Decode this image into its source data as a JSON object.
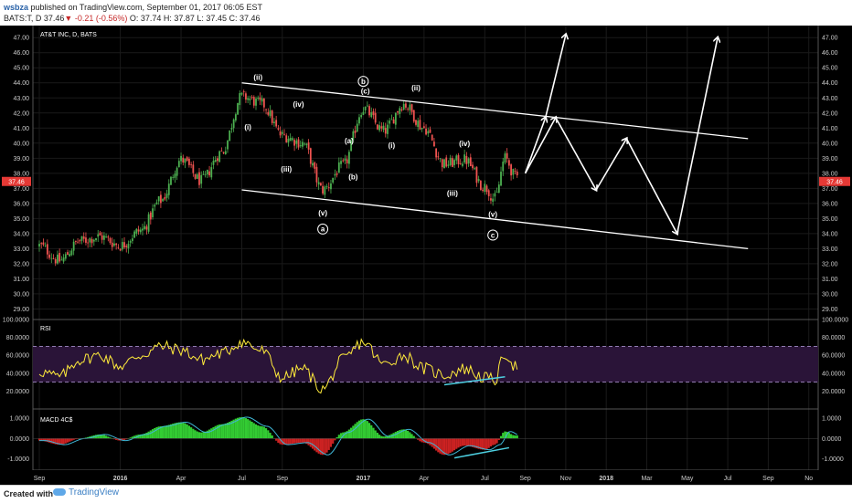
{
  "header": {
    "author": "wsbza",
    "published_text": "published on TradingView.com, September 01, 2017 06:05 EST",
    "symbol_text": "BATS:T, D",
    "last_text": "37.46",
    "change_text": "-0.21 (-0.56%)",
    "ohlc_text": "O: 37.74 H: 37.87 L: 37.45 C: 37.46"
  },
  "footer": {
    "created_with": "Created with",
    "brand": "TradingView"
  },
  "colors": {
    "background": "#000000",
    "up": "#4caf50",
    "down": "#ef5350",
    "rsi": "#ffeb3b",
    "rsi_band": "#b39ddb",
    "trendline": "#ffffff",
    "divergence": "#4dd0e1",
    "macd_pos": "#33cc33",
    "macd_neg": "#cc2222",
    "macd_line": "#3fb6d6"
  },
  "chart_data": [
    {
      "type": "candlestick",
      "title": "AT&T INC, D, BATS",
      "ylim": [
        28.3,
        47.8
      ],
      "y_ticks": [
        "29.00",
        "30.00",
        "31.00",
        "32.00",
        "33.00",
        "34.00",
        "35.00",
        "36.00",
        "37.00",
        "38.00",
        "39.00",
        "40.00",
        "41.00",
        "42.00",
        "43.00",
        "44.00",
        "45.00",
        "46.00",
        "47.00"
      ],
      "last_price": "37.46",
      "x_labels": [
        "Sep",
        "2016",
        "Apr",
        "Jul",
        "Sep",
        "2017",
        "Apr",
        "Jul",
        "Sep",
        "Nov",
        "2018",
        "Mar",
        "May",
        "Jul",
        "Sep",
        "No"
      ],
      "x_label_months": [
        0,
        4,
        7,
        10,
        12,
        16,
        19,
        22,
        24,
        26,
        28,
        30,
        32,
        34,
        36,
        38
      ],
      "price_anchors": [
        [
          0,
          33.2
        ],
        [
          1,
          32.2
        ],
        [
          2,
          33.5
        ],
        [
          3,
          33.8
        ],
        [
          4,
          33.2
        ],
        [
          5,
          34.2
        ],
        [
          6,
          36.2
        ],
        [
          7,
          38.9
        ],
        [
          8,
          37.5
        ],
        [
          9,
          39.4
        ],
        [
          10,
          43.1
        ],
        [
          11,
          42.6
        ],
        [
          12,
          40.5
        ],
        [
          13,
          40.0
        ],
        [
          14,
          36.9
        ],
        [
          15,
          38.5
        ],
        [
          16,
          42.3
        ],
        [
          17,
          40.8
        ],
        [
          18,
          42.6
        ],
        [
          19,
          41.0
        ],
        [
          20,
          38.6
        ],
        [
          21,
          38.9
        ],
        [
          22,
          37.1
        ],
        [
          22.5,
          36.3
        ],
        [
          23,
          39.0
        ],
        [
          23.5,
          37.8
        ]
      ],
      "wave_labels": [
        {
          "text": "(ii)",
          "m": 10.8,
          "p": 44.2
        },
        {
          "text": "(i)",
          "m": 10.3,
          "p": 40.9
        },
        {
          "text": "(iv)",
          "m": 12.8,
          "p": 42.4
        },
        {
          "text": "(iii)",
          "m": 12.2,
          "p": 38.1
        },
        {
          "text": "(v)",
          "m": 14.0,
          "p": 35.2
        },
        {
          "text": "(a)",
          "m": 15.3,
          "p": 40.0
        },
        {
          "text": "(b)",
          "m": 15.5,
          "p": 37.6
        },
        {
          "text": "(c)",
          "m": 16.1,
          "p": 43.3
        },
        {
          "text": "(i)",
          "m": 17.4,
          "p": 39.7
        },
        {
          "text": "(ii)",
          "m": 18.6,
          "p": 43.5
        },
        {
          "text": "(iv)",
          "m": 21.0,
          "p": 39.8
        },
        {
          "text": "(iii)",
          "m": 20.4,
          "p": 36.5
        },
        {
          "text": "(v)",
          "m": 22.4,
          "p": 35.1
        }
      ],
      "circle_labels": [
        {
          "text": "a",
          "m": 14.0,
          "p": 34.3
        },
        {
          "text": "b",
          "m": 16.0,
          "p": 44.1
        },
        {
          "text": "c",
          "m": 22.4,
          "p": 33.9
        }
      ],
      "channel_upper": [
        [
          10.0,
          44.0
        ],
        [
          35.0,
          40.3
        ]
      ],
      "channel_lower": [
        [
          10.0,
          36.9
        ],
        [
          35.0,
          33.0
        ]
      ],
      "projection_path_1": [
        [
          24.0,
          38.0
        ],
        [
          25.5,
          41.7
        ],
        [
          27.5,
          36.9
        ],
        [
          29.0,
          40.3
        ],
        [
          31.5,
          34.0
        ],
        [
          33.5,
          47.0
        ]
      ],
      "projection_path_2": [
        [
          24.0,
          38.0
        ],
        [
          25.0,
          41.7
        ],
        [
          26.0,
          47.2
        ]
      ]
    },
    {
      "type": "line",
      "title": "RSI",
      "ylim": [
        0,
        100
      ],
      "y_ticks": [
        "20.0000",
        "40.0000",
        "60.0000",
        "80.0000",
        "100.0000"
      ],
      "band": [
        30,
        70
      ],
      "rsi_anchors": [
        [
          0,
          42
        ],
        [
          1,
          36
        ],
        [
          2,
          55
        ],
        [
          3,
          60
        ],
        [
          4,
          48
        ],
        [
          5,
          60
        ],
        [
          6,
          70
        ],
        [
          7,
          66
        ],
        [
          8,
          55
        ],
        [
          9,
          62
        ],
        [
          10,
          75
        ],
        [
          11,
          65
        ],
        [
          12,
          35
        ],
        [
          13,
          45
        ],
        [
          14,
          22
        ],
        [
          15,
          55
        ],
        [
          16,
          75
        ],
        [
          17,
          50
        ],
        [
          18,
          60
        ],
        [
          19,
          45
        ],
        [
          20,
          38
        ],
        [
          21,
          45
        ],
        [
          22,
          35
        ],
        [
          22.5,
          32
        ],
        [
          23,
          62
        ],
        [
          23.5,
          48
        ]
      ],
      "divergence_line": [
        [
          20.0,
          27
        ],
        [
          23.0,
          36
        ]
      ]
    },
    {
      "type": "bar",
      "title": "MACD 4C$",
      "ylim": [
        -1.55,
        1.45
      ],
      "y_ticks": [
        "-1.0000",
        "0.0000",
        "1.0000"
      ],
      "macd_anchors": [
        [
          0,
          -0.1
        ],
        [
          1,
          -0.3
        ],
        [
          2,
          0.0
        ],
        [
          3,
          0.2
        ],
        [
          4,
          -0.1
        ],
        [
          5,
          0.2
        ],
        [
          6,
          0.6
        ],
        [
          7,
          0.8
        ],
        [
          8,
          0.3
        ],
        [
          9,
          0.7
        ],
        [
          10,
          1.05
        ],
        [
          11,
          0.6
        ],
        [
          12,
          -0.3
        ],
        [
          13,
          -0.2
        ],
        [
          14,
          -0.8
        ],
        [
          15,
          0.3
        ],
        [
          16,
          0.95
        ],
        [
          17,
          0.1
        ],
        [
          18,
          0.45
        ],
        [
          19,
          -0.2
        ],
        [
          20,
          -0.8
        ],
        [
          21,
          -0.35
        ],
        [
          22,
          -0.55
        ],
        [
          22.5,
          -0.3
        ],
        [
          23,
          0.35
        ],
        [
          23.5,
          0.15
        ]
      ],
      "divergence_line": [
        [
          20.5,
          -0.95
        ],
        [
          23.2,
          -0.45
        ]
      ]
    }
  ]
}
